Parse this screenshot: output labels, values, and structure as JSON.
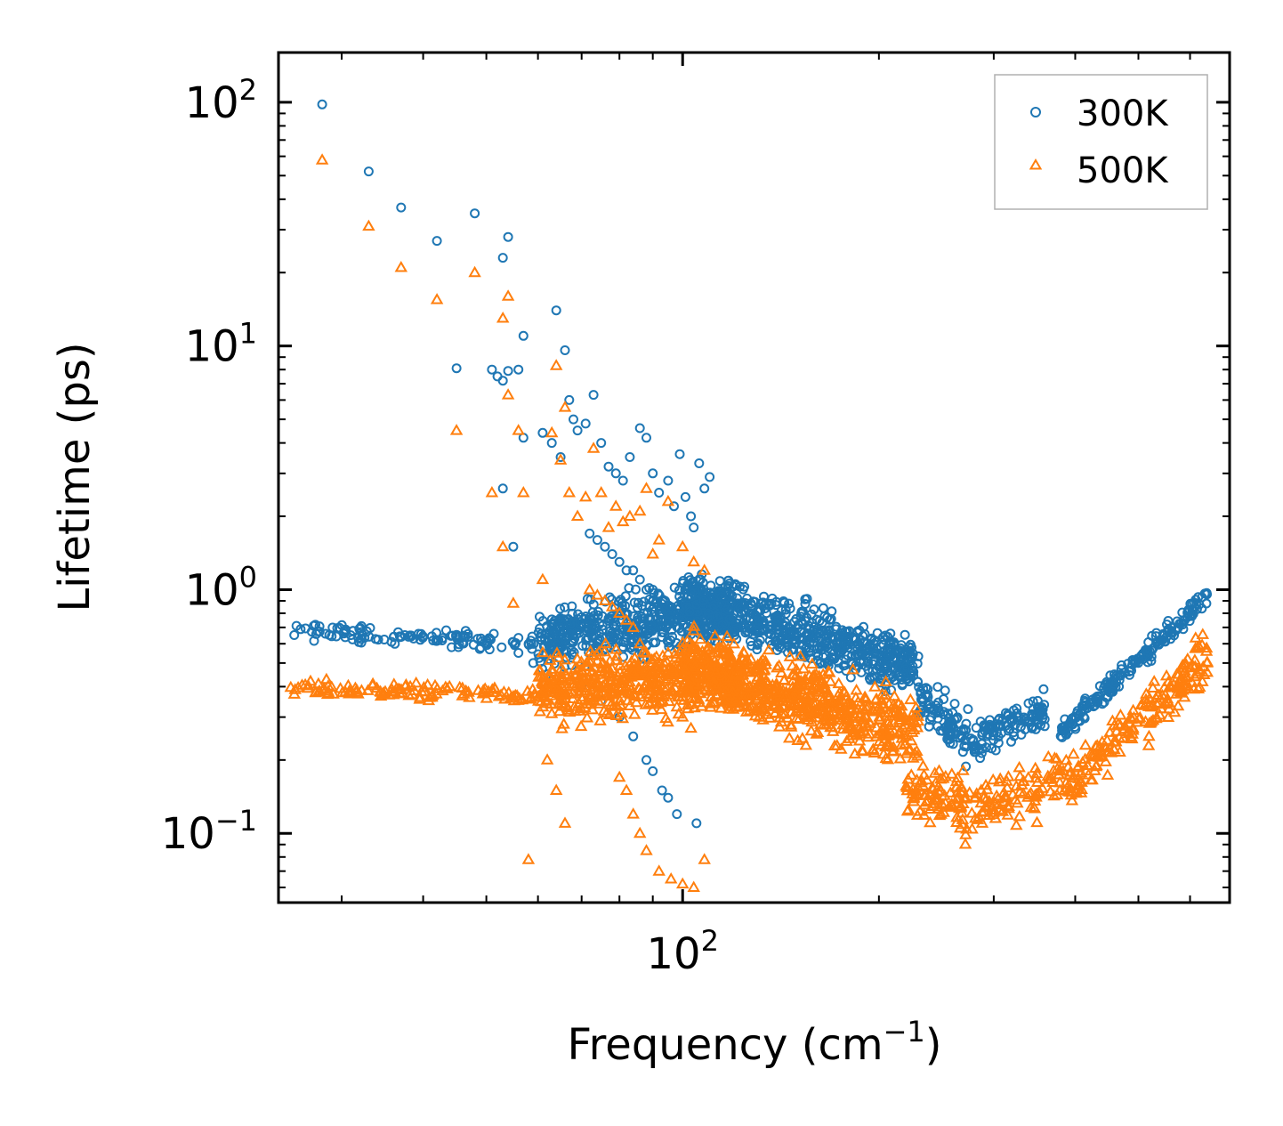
{
  "chart_data": {
    "type": "scatter",
    "xscale": "log",
    "yscale": "log",
    "xlabel": "Frequency (cm",
    "xlabel_exponent": "−1",
    "xlabel_suffix": ")",
    "ylabel": "Lifetime (ps)",
    "xlim": [
      24,
      690
    ],
    "ylim": [
      0.052,
      160
    ],
    "x_major_ticks": [
      {
        "value": 100,
        "base": "10",
        "exp": "2"
      }
    ],
    "y_major_ticks": [
      {
        "value": 100,
        "base": "10",
        "exp": "2"
      },
      {
        "value": 10,
        "base": "10",
        "exp": "1"
      },
      {
        "value": 1,
        "base": "10",
        "exp": "0"
      },
      {
        "value": 0.1,
        "base": "10",
        "exp": "−1"
      }
    ],
    "legend_position": "top-right",
    "series": [
      {
        "name": "300K",
        "marker": "circle",
        "color": "#1f77b4",
        "x": [
          28,
          33,
          37,
          42,
          48,
          53,
          54,
          56,
          57,
          64,
          66,
          45,
          51,
          52,
          53,
          54,
          53,
          55,
          57,
          61,
          63,
          65,
          67,
          68,
          69,
          71,
          73,
          75,
          77,
          79,
          81,
          83,
          86,
          88,
          90,
          92,
          95,
          97,
          99,
          101,
          103,
          104,
          106,
          108,
          110,
          72,
          74,
          76,
          78,
          80,
          82,
          84,
          86,
          88,
          90,
          92,
          94,
          96,
          98,
          100,
          56,
          59,
          62,
          70,
          75,
          80,
          84,
          88,
          90,
          93,
          95,
          98,
          105
        ],
        "y": [
          98,
          52,
          37,
          27,
          35,
          23,
          28,
          8,
          11,
          14,
          9.6,
          8.1,
          8,
          7.5,
          7.2,
          7.9,
          2.6,
          1.5,
          4.2,
          4.4,
          4.0,
          3.5,
          6.0,
          5.0,
          4.5,
          4.8,
          6.3,
          4.0,
          3.2,
          3.0,
          2.8,
          3.5,
          4.6,
          4.2,
          3.0,
          2.5,
          2.8,
          2.2,
          3.6,
          2.4,
          2.0,
          1.8,
          3.3,
          2.6,
          2.9,
          1.7,
          1.6,
          1.5,
          1.4,
          1.3,
          1.2,
          1.2,
          1.1,
          1.0,
          1.0,
          0.95,
          0.9,
          0.85,
          0.8,
          0.75,
          0.55,
          0.5,
          0.45,
          0.4,
          0.35,
          0.3,
          0.25,
          0.2,
          0.18,
          0.15,
          0.14,
          0.12,
          0.11
        ],
        "bands": [
          {
            "x_start": 25,
            "x_end": 60,
            "y_start": 0.68,
            "y_end": 0.6,
            "spread": 0.1,
            "count": 120
          },
          {
            "x_start": 60,
            "x_end": 120,
            "y_start": 0.62,
            "y_end": 0.85,
            "spread": 0.35,
            "count": 520
          },
          {
            "x_start": 100,
            "x_end": 230,
            "y_start": 0.9,
            "y_end": 0.48,
            "spread": 0.35,
            "count": 650
          },
          {
            "x_start": 230,
            "x_end": 280,
            "y_start": 0.35,
            "y_end": 0.24,
            "spread": 0.3,
            "count": 90
          },
          {
            "x_start": 280,
            "x_end": 360,
            "y_start": 0.24,
            "y_end": 0.32,
            "spread": 0.22,
            "count": 110
          },
          {
            "x_start": 380,
            "x_end": 640,
            "y_start": 0.26,
            "y_end": 0.95,
            "spread": 0.12,
            "count": 190
          }
        ]
      },
      {
        "name": "500K",
        "marker": "triangle",
        "color": "#ff7f0e",
        "x": [
          28,
          33,
          37,
          42,
          48,
          53,
          54,
          54,
          56,
          64,
          66,
          45,
          51,
          53,
          55,
          57,
          61,
          63,
          65,
          67,
          69,
          71,
          73,
          75,
          77,
          79,
          81,
          83,
          86,
          88,
          90,
          92,
          95,
          100,
          104,
          108,
          72,
          74,
          76,
          78,
          80,
          82,
          84,
          86,
          88,
          90,
          92,
          94,
          96,
          98,
          100,
          103,
          58,
          62,
          64,
          66,
          80,
          82,
          84,
          86,
          88,
          92,
          96,
          100,
          104,
          108
        ],
        "y": [
          58,
          31,
          21,
          15.5,
          20,
          13,
          16,
          6.3,
          4.5,
          8.3,
          5.6,
          4.5,
          2.5,
          1.5,
          0.88,
          2.5,
          1.1,
          4.4,
          3.4,
          2.5,
          2.0,
          2.4,
          3.8,
          2.5,
          1.8,
          2.2,
          1.9,
          2.0,
          2.1,
          2.6,
          1.4,
          1.6,
          2.3,
          1.5,
          1.3,
          1.2,
          1.0,
          0.95,
          0.9,
          0.85,
          0.8,
          0.75,
          0.7,
          0.6,
          0.55,
          0.5,
          0.45,
          0.42,
          0.38,
          0.33,
          0.3,
          0.27,
          0.078,
          0.2,
          0.15,
          0.11,
          0.17,
          0.15,
          0.12,
          0.1,
          0.085,
          0.07,
          0.065,
          0.062,
          0.06,
          0.078
        ],
        "bands": [
          {
            "x_start": 25,
            "x_end": 60,
            "y_start": 0.4,
            "y_end": 0.37,
            "spread": 0.1,
            "count": 120
          },
          {
            "x_start": 60,
            "x_end": 120,
            "y_start": 0.38,
            "y_end": 0.45,
            "spread": 0.4,
            "count": 520
          },
          {
            "x_start": 100,
            "x_end": 230,
            "y_start": 0.48,
            "y_end": 0.26,
            "spread": 0.42,
            "count": 650
          },
          {
            "x_start": 220,
            "x_end": 270,
            "y_start": 0.15,
            "y_end": 0.14,
            "spread": 0.35,
            "count": 90
          },
          {
            "x_start": 270,
            "x_end": 390,
            "y_start": 0.12,
            "y_end": 0.17,
            "spread": 0.3,
            "count": 110
          },
          {
            "x_start": 390,
            "x_end": 640,
            "y_start": 0.16,
            "y_end": 0.52,
            "spread": 0.3,
            "count": 190
          }
        ]
      }
    ]
  }
}
